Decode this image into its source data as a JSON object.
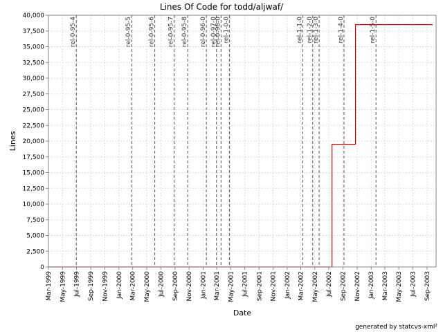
{
  "chart_data": {
    "type": "line",
    "title": "Lines Of Code for todd/aljwaf/",
    "xlabel": "Date",
    "ylabel": "Lines",
    "footer": "generated by statcvs-xml²",
    "xlim": [
      "1999-03-01",
      "2003-10-10"
    ],
    "ylim": [
      0,
      40000
    ],
    "y_ticks": [
      0,
      2500,
      5000,
      7500,
      10000,
      12500,
      15000,
      17500,
      20000,
      22500,
      25000,
      27500,
      30000,
      32500,
      35000,
      37500,
      40000
    ],
    "x_ticks": [
      {
        "date": "1999-03-01",
        "label": "Mar-1999"
      },
      {
        "date": "1999-05-01",
        "label": "May-1999"
      },
      {
        "date": "1999-07-01",
        "label": "Jul-1999"
      },
      {
        "date": "1999-09-01",
        "label": "Sep-1999"
      },
      {
        "date": "1999-11-01",
        "label": "Nov-1999"
      },
      {
        "date": "2000-01-01",
        "label": "Jan-2000"
      },
      {
        "date": "2000-03-01",
        "label": "Mar-2000"
      },
      {
        "date": "2000-05-01",
        "label": "May-2000"
      },
      {
        "date": "2000-07-01",
        "label": "Jul-2000"
      },
      {
        "date": "2000-09-01",
        "label": "Sep-2000"
      },
      {
        "date": "2000-11-01",
        "label": "Nov-2000"
      },
      {
        "date": "2001-01-01",
        "label": "Jan-2001"
      },
      {
        "date": "2001-03-01",
        "label": "Mar-2001"
      },
      {
        "date": "2001-05-01",
        "label": "May-2001"
      },
      {
        "date": "2001-07-01",
        "label": "Jul-2001"
      },
      {
        "date": "2001-09-01",
        "label": "Sep-2001"
      },
      {
        "date": "2001-11-01",
        "label": "Nov-2001"
      },
      {
        "date": "2002-01-01",
        "label": "Jan-2002"
      },
      {
        "date": "2002-03-01",
        "label": "Mar-2002"
      },
      {
        "date": "2002-05-01",
        "label": "May-2002"
      },
      {
        "date": "2002-07-01",
        "label": "Jul-2002"
      },
      {
        "date": "2002-09-01",
        "label": "Sep-2002"
      },
      {
        "date": "2002-11-01",
        "label": "Nov-2002"
      },
      {
        "date": "2003-01-01",
        "label": "Jan-2003"
      },
      {
        "date": "2003-03-01",
        "label": "Mar-2003"
      },
      {
        "date": "2003-05-01",
        "label": "May-2003"
      },
      {
        "date": "2003-07-01",
        "label": "Jul-2003"
      },
      {
        "date": "2003-09-01",
        "label": "Sep-2003"
      }
    ],
    "grid": true,
    "series": [
      {
        "color": "#cc0000",
        "step": true,
        "points": [
          {
            "x": "1999-03-01",
            "y": 0
          },
          {
            "x": "2002-07-15",
            "y": 0
          },
          {
            "x": "2002-07-15",
            "y": 19500
          },
          {
            "x": "2002-10-25",
            "y": 19500
          },
          {
            "x": "2002-10-25",
            "y": 38500
          },
          {
            "x": "2003-09-25",
            "y": 38500
          }
        ]
      }
    ],
    "release_markers": [
      {
        "label": "rel-0-95-4",
        "date": "1999-06-30"
      },
      {
        "label": "rel-0-95-5",
        "date": "2000-02-25"
      },
      {
        "label": "rel-0-95-6",
        "date": "2000-06-05"
      },
      {
        "label": "rel-0-95-7",
        "date": "2000-08-28"
      },
      {
        "label": "rel-0-95-8",
        "date": "2000-10-26"
      },
      {
        "label": "rel-0-96-0",
        "date": "2001-01-15"
      },
      {
        "label": "rel-0-97-0",
        "date": "2001-02-28"
      },
      {
        "label": "rel-0-98-0",
        "date": "2001-03-20"
      },
      {
        "label": "rel-1-0-0",
        "date": "2001-04-25"
      },
      {
        "label": "rel-1-1-0",
        "date": "2002-03-10"
      },
      {
        "label": "rel-1-2-0",
        "date": "2002-04-22"
      },
      {
        "label": "rel-1-3-0",
        "date": "2002-05-20"
      },
      {
        "label": "rel-1-4-0",
        "date": "2002-09-05"
      },
      {
        "label": "rel-1-5-0",
        "date": "2003-01-22"
      }
    ],
    "colors": {
      "line": "#cc0000",
      "marker": "#555555",
      "grid": "#dddddd"
    }
  }
}
